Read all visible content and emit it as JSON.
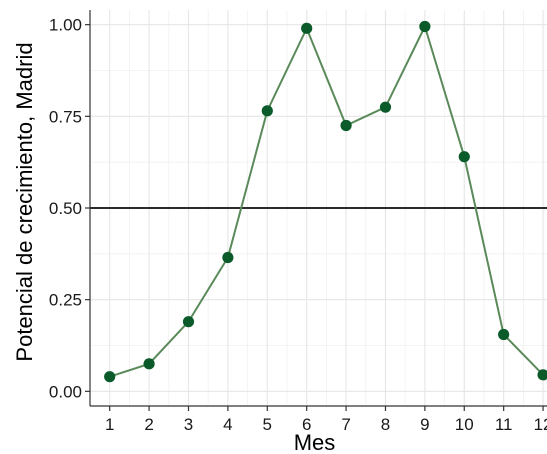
{
  "chart_data": {
    "type": "line",
    "xlabel": "Mes",
    "ylabel": "Potencial de crecimiento, Madrid",
    "x": [
      1,
      2,
      3,
      4,
      5,
      6,
      7,
      8,
      9,
      10,
      11,
      12
    ],
    "x_tick_labels": [
      "1",
      "2",
      "3",
      "4",
      "5",
      "6",
      "7",
      "8",
      "9",
      "10",
      "11",
      "12"
    ],
    "y_tick_labels": [
      "0.00",
      "0.25",
      "0.50",
      "0.75",
      "1.00"
    ],
    "xlim": [
      0.5,
      12.1
    ],
    "ylim": [
      -0.04,
      1.04
    ],
    "series": [
      {
        "values": [
          0.04,
          0.075,
          0.19,
          0.365,
          0.765,
          0.99,
          0.725,
          0.775,
          0.995,
          0.64,
          0.155,
          0.045
        ],
        "line_color": "#5a8a5a",
        "marker_color": "#0b5a2a"
      }
    ],
    "reference_line": {
      "y": 0.5,
      "color": "#2b2b2b"
    },
    "grid": true,
    "legend": "none"
  }
}
